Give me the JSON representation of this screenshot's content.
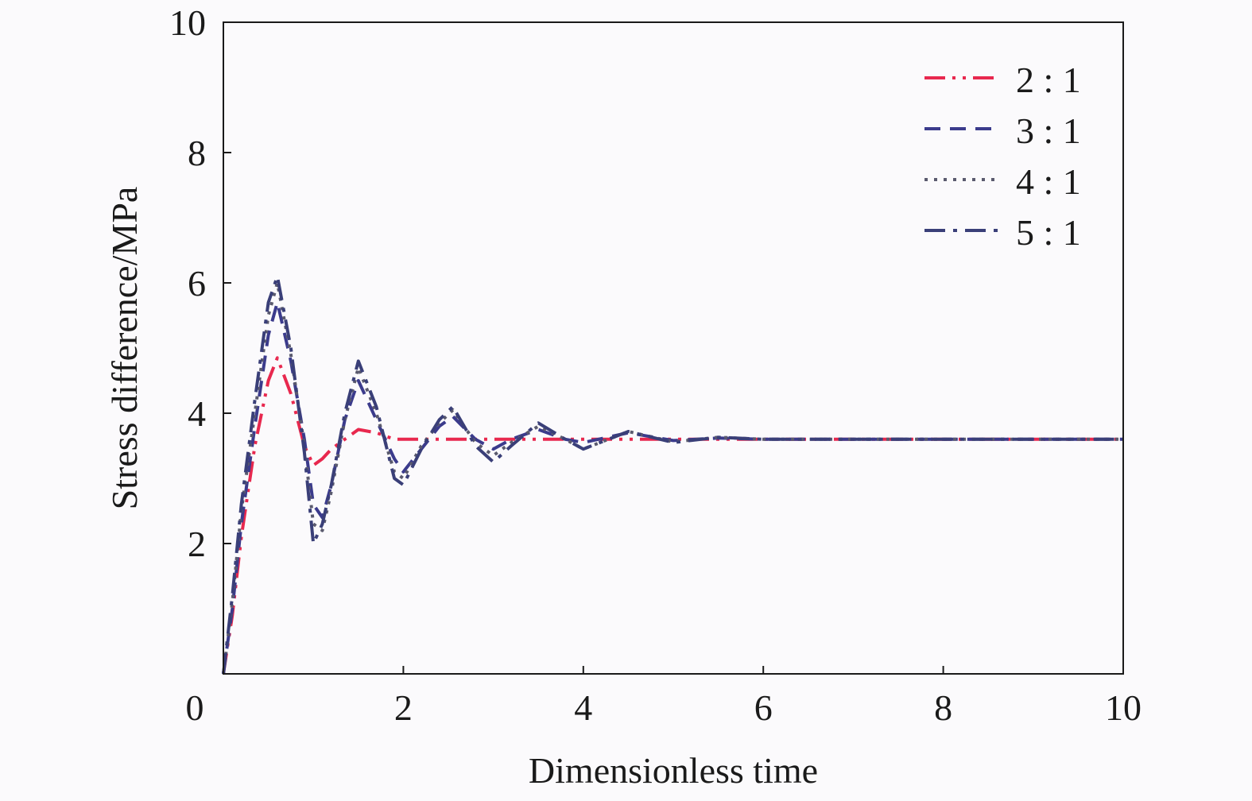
{
  "chart_data": {
    "type": "line",
    "xlabel": "Dimensionless time",
    "ylabel": "Stress difference/MPa",
    "xlim": [
      0,
      10
    ],
    "ylim": [
      0,
      10
    ],
    "x_ticks": [
      {
        "value": 0,
        "label": "0"
      },
      {
        "value": 2,
        "label": "2"
      },
      {
        "value": 4,
        "label": "4"
      },
      {
        "value": 6,
        "label": "6"
      },
      {
        "value": 8,
        "label": "8"
      },
      {
        "value": 10,
        "label": "10"
      }
    ],
    "y_ticks": [
      {
        "value": 2,
        "label": "2"
      },
      {
        "value": 4,
        "label": "4"
      },
      {
        "value": 6,
        "label": "6"
      },
      {
        "value": 8,
        "label": "8"
      },
      {
        "value": 10,
        "label": "10"
      }
    ],
    "grid": false,
    "legend_position": "top-right",
    "series": [
      {
        "name": "2 : 1",
        "color": "#e8284e",
        "dash": "dash-dot-dot",
        "x": [
          0,
          0.1,
          0.2,
          0.35,
          0.5,
          0.6,
          0.75,
          0.9,
          1.0,
          1.1,
          1.2,
          1.35,
          1.5,
          1.7,
          1.9,
          2.2,
          2.5,
          3,
          3.5,
          4,
          5,
          6,
          8,
          10
        ],
        "y": [
          0,
          0.9,
          2.1,
          3.5,
          4.5,
          4.85,
          4.3,
          3.5,
          3.2,
          3.3,
          3.45,
          3.6,
          3.75,
          3.7,
          3.6,
          3.6,
          3.6,
          3.6,
          3.6,
          3.6,
          3.6,
          3.6,
          3.6,
          3.6
        ]
      },
      {
        "name": "3 : 1",
        "color": "#3b3b8c",
        "dash": "dash",
        "x": [
          0,
          0.1,
          0.2,
          0.35,
          0.5,
          0.6,
          0.75,
          0.9,
          1.0,
          1.1,
          1.2,
          1.35,
          1.5,
          1.7,
          1.9,
          2.0,
          2.2,
          2.4,
          2.55,
          2.8,
          3.0,
          3.2,
          3.5,
          3.8,
          4.0,
          4.5,
          5.0,
          5.5,
          6,
          7,
          8,
          10
        ],
        "y": [
          0,
          1.0,
          2.3,
          3.8,
          5.2,
          5.7,
          4.8,
          3.6,
          2.6,
          2.4,
          2.9,
          3.9,
          4.5,
          3.9,
          3.3,
          3.1,
          3.45,
          3.8,
          3.95,
          3.6,
          3.45,
          3.6,
          3.75,
          3.6,
          3.55,
          3.7,
          3.58,
          3.62,
          3.6,
          3.6,
          3.6,
          3.6
        ]
      },
      {
        "name": "4 : 1",
        "color": "#5a5a6e",
        "dash": "dot",
        "x": [
          0,
          0.1,
          0.2,
          0.35,
          0.5,
          0.6,
          0.75,
          0.9,
          1.0,
          1.1,
          1.2,
          1.35,
          1.5,
          1.7,
          1.9,
          2.0,
          2.2,
          2.4,
          2.55,
          2.8,
          3.0,
          3.2,
          3.5,
          3.8,
          4.0,
          4.5,
          5.0,
          5.5,
          6,
          7,
          8,
          10
        ],
        "y": [
          0,
          1.1,
          2.5,
          4.0,
          5.5,
          6.0,
          4.9,
          3.5,
          2.3,
          2.2,
          2.8,
          3.9,
          4.7,
          4.0,
          3.1,
          3.0,
          3.5,
          3.85,
          4.05,
          3.55,
          3.35,
          3.55,
          3.8,
          3.6,
          3.45,
          3.72,
          3.56,
          3.63,
          3.6,
          3.6,
          3.6,
          3.6
        ]
      },
      {
        "name": "5 : 1",
        "color": "#3a3f78",
        "dash": "dash-dot",
        "x": [
          0,
          0.1,
          0.2,
          0.35,
          0.5,
          0.6,
          0.75,
          0.9,
          1.0,
          1.1,
          1.2,
          1.35,
          1.5,
          1.7,
          1.9,
          2.0,
          2.2,
          2.4,
          2.55,
          2.8,
          3.0,
          3.2,
          3.5,
          3.8,
          4.0,
          4.5,
          5.0,
          5.5,
          6,
          7,
          8,
          10
        ],
        "y": [
          0,
          1.2,
          2.6,
          4.2,
          5.7,
          6.1,
          5.0,
          3.4,
          2.0,
          2.3,
          2.9,
          4.0,
          4.8,
          4.1,
          3.0,
          2.9,
          3.45,
          3.9,
          4.1,
          3.5,
          3.25,
          3.5,
          3.85,
          3.6,
          3.45,
          3.72,
          3.55,
          3.63,
          3.6,
          3.6,
          3.6,
          3.6
        ]
      }
    ]
  }
}
